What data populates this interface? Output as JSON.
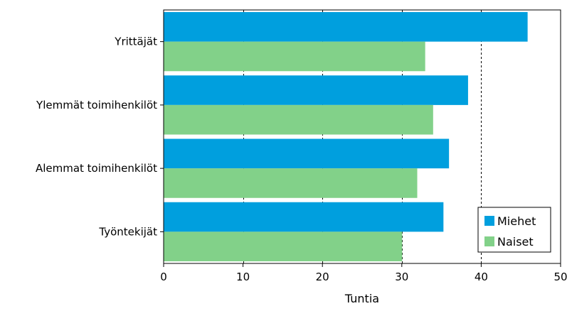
{
  "chart_data": {
    "type": "bar",
    "orientation": "horizontal",
    "categories": [
      "Yrittäjät",
      "Ylemmät toimihenkilöt",
      "Alemmat toimihenkilöt",
      "Työntekijät"
    ],
    "series": [
      {
        "name": "Miehet",
        "values": [
          45.8,
          38.3,
          35.9,
          35.2
        ],
        "color": "#009fde"
      },
      {
        "name": "Naiset",
        "values": [
          32.9,
          33.9,
          31.9,
          30.0
        ],
        "color": "#82d189"
      }
    ],
    "xlabel": "Tuntia",
    "xlim": [
      0,
      50
    ],
    "xticks": [
      0,
      10,
      20,
      30,
      40,
      50
    ],
    "xtick_labels": [
      "0",
      "10",
      "20",
      "30",
      "40",
      "50"
    ],
    "grid": "vertical dashed",
    "legend_position": "bottom-right"
  }
}
